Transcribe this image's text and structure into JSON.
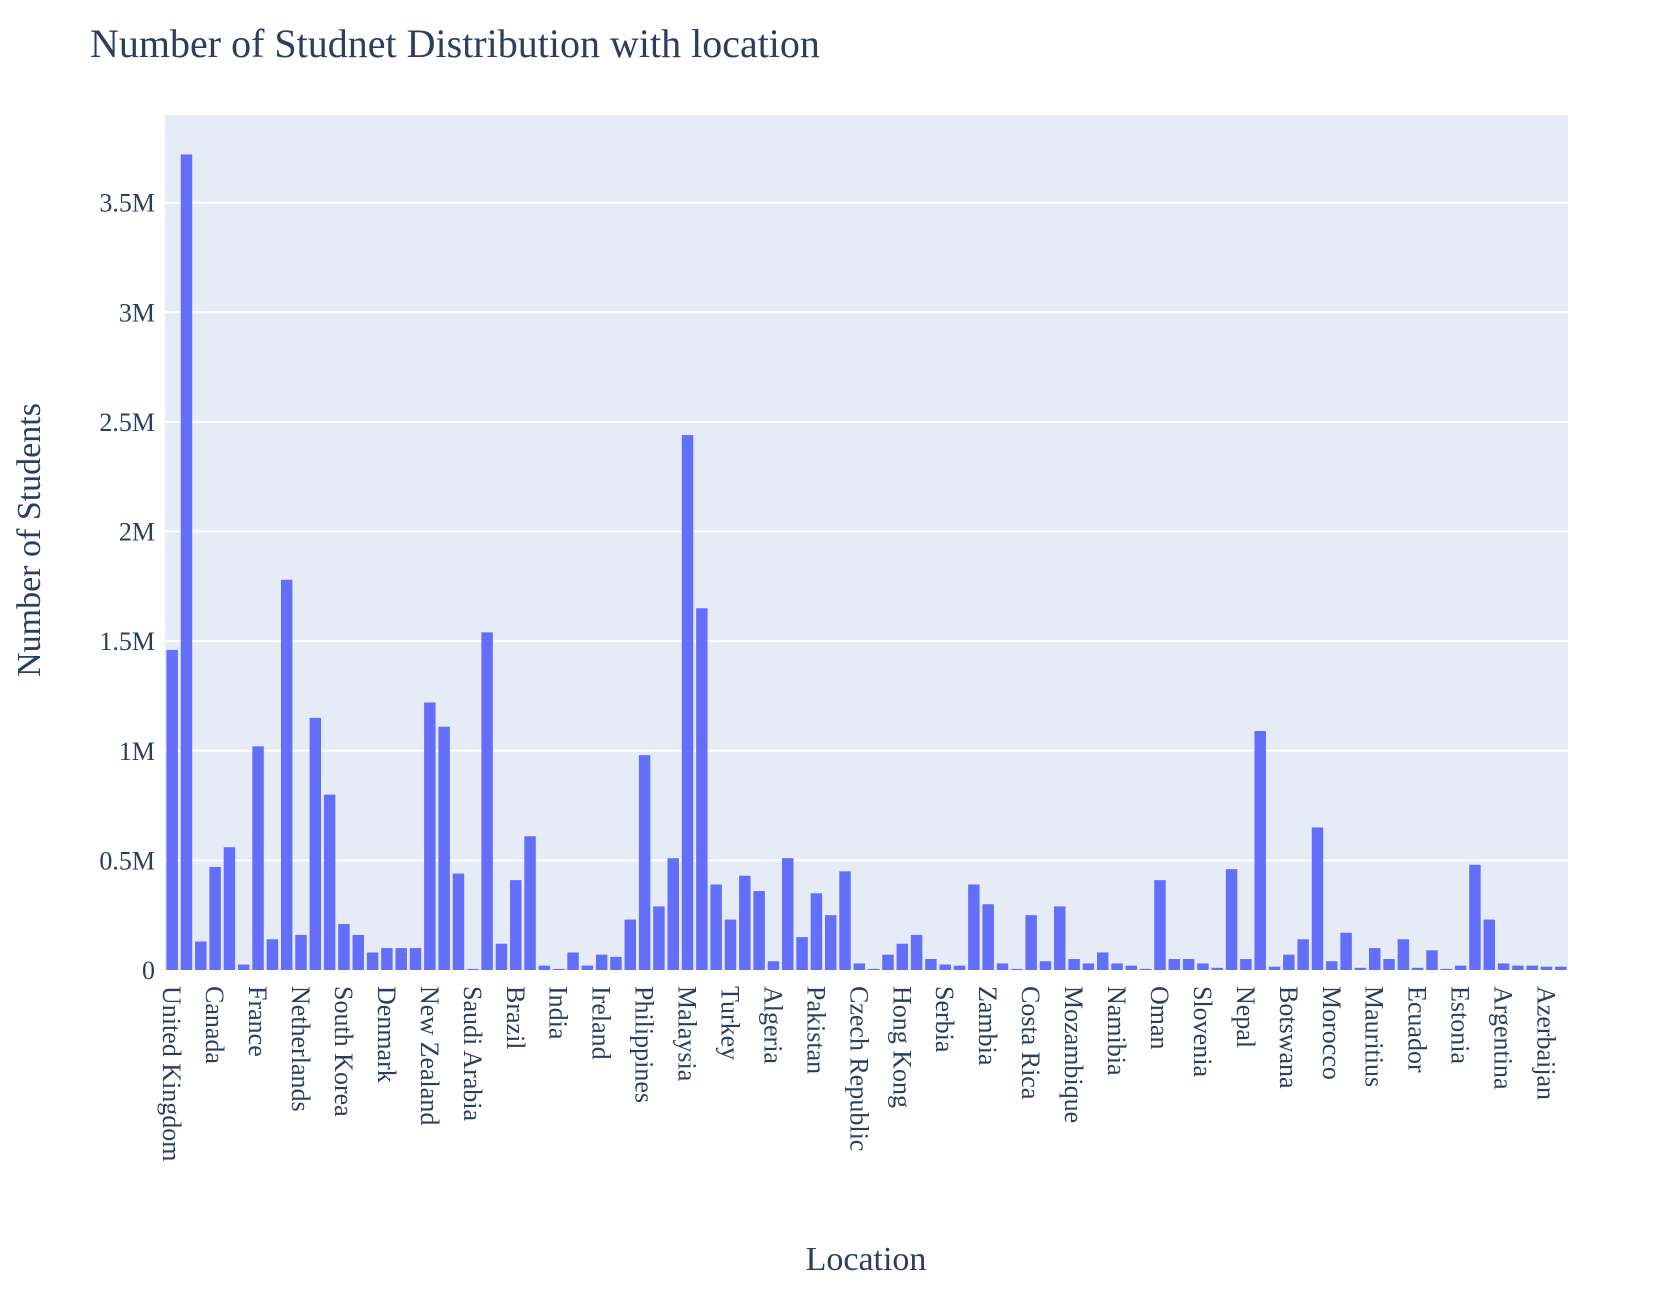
{
  "chart_data": {
    "type": "bar",
    "title": "Number of Studnet Distribution with location",
    "xlabel": "Location",
    "ylabel": "Number of Students",
    "ylim": [
      0,
      3900000
    ],
    "yticks": [
      {
        "value": 0,
        "label": "0"
      },
      {
        "value": 500000,
        "label": "0.5M"
      },
      {
        "value": 1000000,
        "label": "1M"
      },
      {
        "value": 1500000,
        "label": "1.5M"
      },
      {
        "value": 2000000,
        "label": "2M"
      },
      {
        "value": 2500000,
        "label": "2.5M"
      },
      {
        "value": 3000000,
        "label": "3M"
      },
      {
        "value": 3500000,
        "label": "3.5M"
      }
    ],
    "x_tick_labels": [
      "United Kingdom",
      "Canada",
      "France",
      "Netherlands",
      "South Korea",
      "Denmark",
      "New Zealand",
      "Saudi Arabia",
      "Brazil",
      "India",
      "Ireland",
      "Philippines",
      "Malaysia",
      "Turkey",
      "Algeria",
      "Pakistan",
      "Czech Republic",
      "Hong Kong",
      "Serbia",
      "Zambia",
      "Costa Rica",
      "Mozambique",
      "Namibia",
      "Oman",
      "Slovenia",
      "Nepal",
      "Botswana",
      "Morocco",
      "Mauritius",
      "Ecuador",
      "Estonia",
      "Argentina",
      "Azerbaijan"
    ],
    "tick_every": 3,
    "values": [
      1460000,
      3720000,
      130000,
      470000,
      560000,
      25000,
      1020000,
      140000,
      1780000,
      160000,
      1150000,
      800000,
      210000,
      160000,
      80000,
      100000,
      100000,
      100000,
      1220000,
      1110000,
      440000,
      5000,
      1540000,
      120000,
      410000,
      610000,
      20000,
      5000,
      80000,
      20000,
      70000,
      60000,
      230000,
      980000,
      290000,
      510000,
      2440000,
      1650000,
      390000,
      230000,
      430000,
      360000,
      40000,
      510000,
      150000,
      350000,
      250000,
      450000,
      30000,
      5000,
      70000,
      120000,
      160000,
      50000,
      25000,
      20000,
      390000,
      300000,
      30000,
      5000,
      250000,
      40000,
      290000,
      50000,
      30000,
      80000,
      30000,
      20000,
      5000,
      410000,
      50000,
      50000,
      30000,
      10000,
      460000,
      50000,
      1090000,
      15000,
      70000,
      140000,
      650000,
      40000,
      170000,
      10000,
      100000,
      50000,
      140000,
      10000,
      90000,
      5000,
      20000,
      480000,
      230000,
      30000,
      20000,
      20000,
      15000,
      15000
    ],
    "bar_color": "#636efa",
    "plot_bg": "#e5ecf6",
    "grid": true,
    "legend": "none"
  }
}
